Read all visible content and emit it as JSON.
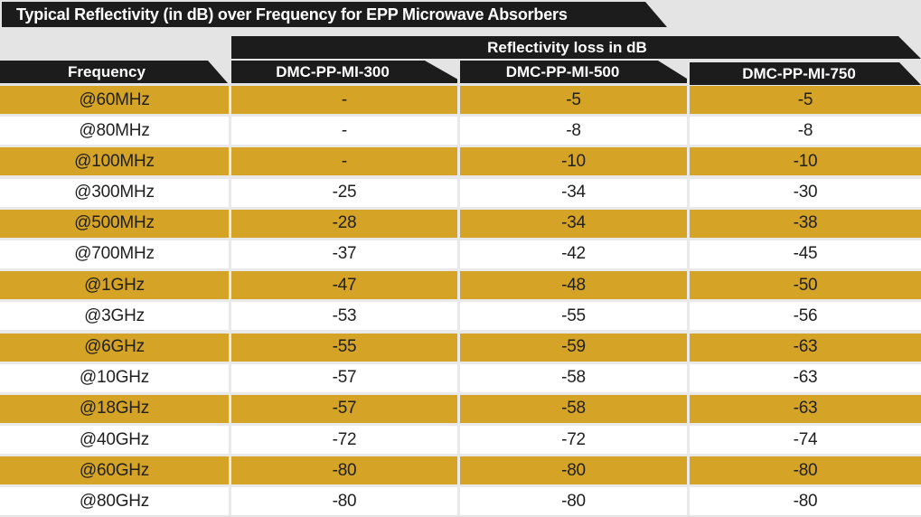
{
  "title": "Typical Reflectivity (in dB) over Frequency for EPP Microwave Absorbers",
  "table": {
    "group_header": "Reflectivity loss in dB",
    "frequency_header": "Frequency",
    "product_columns": [
      "DMC-PP-MI-300",
      "DMC-PP-MI-500",
      "DMC-PP-MI-750"
    ],
    "rows": [
      {
        "frequency": "@60MHz",
        "values": [
          "-",
          "-5",
          "-5"
        ]
      },
      {
        "frequency": "@80MHz",
        "values": [
          "-",
          "-8",
          "-8"
        ]
      },
      {
        "frequency": "@100MHz",
        "values": [
          "-",
          "-10",
          "-10"
        ]
      },
      {
        "frequency": "@300MHz",
        "values": [
          "-25",
          "-34",
          "-30"
        ]
      },
      {
        "frequency": "@500MHz",
        "values": [
          "-28",
          "-34",
          "-38"
        ]
      },
      {
        "frequency": "@700MHz",
        "values": [
          "-37",
          "-42",
          "-45"
        ]
      },
      {
        "frequency": "@1GHz",
        "values": [
          "-47",
          "-48",
          "-50"
        ]
      },
      {
        "frequency": "@3GHz",
        "values": [
          "-53",
          "-55",
          "-56"
        ]
      },
      {
        "frequency": "@6GHz",
        "values": [
          "-55",
          "-59",
          "-63"
        ]
      },
      {
        "frequency": "@10GHz",
        "values": [
          "-57",
          "-58",
          "-63"
        ]
      },
      {
        "frequency": "@18GHz",
        "values": [
          "-57",
          "-58",
          "-63"
        ]
      },
      {
        "frequency": "@40GHz",
        "values": [
          "-72",
          "-72",
          "-74"
        ]
      },
      {
        "frequency": "@60GHz",
        "values": [
          "-80",
          "-80",
          "-80"
        ]
      },
      {
        "frequency": "@80GHz",
        "values": [
          "-80",
          "-80",
          "-80"
        ]
      }
    ]
  },
  "colors": {
    "banner_black": "#1c1c1c",
    "banner_text": "#ffffff",
    "row_gold": "#d5a326",
    "row_white": "#ffffff",
    "page_background": "#e4e4e4",
    "cell_text": "#1f1f1f"
  },
  "chart_data": {
    "type": "table",
    "title": "Typical Reflectivity (in dB) over Frequency for EPP Microwave Absorbers",
    "group_header": "Reflectivity loss in dB",
    "row_label_header": "Frequency",
    "categories": [
      "@60MHz",
      "@80MHz",
      "@100MHz",
      "@300MHz",
      "@500MHz",
      "@700MHz",
      "@1GHz",
      "@3GHz",
      "@6GHz",
      "@10GHz",
      "@18GHz",
      "@40GHz",
      "@60GHz",
      "@80GHz"
    ],
    "series": [
      {
        "name": "DMC-PP-MI-300",
        "values": [
          null,
          null,
          null,
          -25,
          -28,
          -37,
          -47,
          -53,
          -55,
          -57,
          -57,
          -72,
          -80,
          -80
        ]
      },
      {
        "name": "DMC-PP-MI-500",
        "values": [
          -5,
          -8,
          -10,
          -34,
          -34,
          -42,
          -48,
          -55,
          -59,
          -58,
          -58,
          -72,
          -80,
          -80
        ]
      },
      {
        "name": "DMC-PP-MI-750",
        "values": [
          -5,
          -8,
          -10,
          -30,
          -38,
          -45,
          -50,
          -56,
          -63,
          -63,
          -63,
          -74,
          -80,
          -80
        ]
      }
    ],
    "units": "dB",
    "notes": "Missing values shown as dash"
  }
}
